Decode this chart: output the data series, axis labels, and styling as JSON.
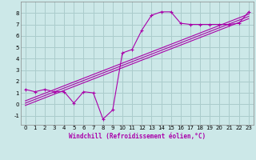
{
  "xlabel": "Windchill (Refroidissement éolien,°C)",
  "bg_color": "#cce8e8",
  "grid_color": "#aacccc",
  "line_color": "#aa00aa",
  "xlim": [
    -0.5,
    23.5
  ],
  "ylim": [
    -1.8,
    9.0
  ],
  "xticks": [
    0,
    1,
    2,
    3,
    4,
    5,
    6,
    7,
    8,
    9,
    10,
    11,
    12,
    13,
    14,
    15,
    16,
    17,
    18,
    19,
    20,
    21,
    22,
    23
  ],
  "yticks": [
    -1,
    0,
    1,
    2,
    3,
    4,
    5,
    6,
    7,
    8
  ],
  "scatter_x": [
    0,
    1,
    2,
    3,
    4,
    5,
    6,
    7,
    8,
    9,
    10,
    11,
    12,
    13,
    14,
    15,
    16,
    17,
    18,
    19,
    20,
    21,
    22,
    23
  ],
  "scatter_y": [
    1.3,
    1.1,
    1.3,
    1.1,
    1.1,
    0.1,
    1.1,
    1.0,
    -1.3,
    -0.5,
    4.5,
    4.8,
    6.5,
    7.8,
    8.1,
    8.1,
    7.1,
    7.0,
    7.0,
    7.0,
    7.0,
    7.0,
    7.1,
    8.1
  ],
  "line1_x": [
    0,
    23
  ],
  "line1_y": [
    0.3,
    7.9
  ],
  "line2_x": [
    0,
    23
  ],
  "line2_y": [
    0.1,
    7.7
  ],
  "line3_x": [
    0,
    23
  ],
  "line3_y": [
    -0.1,
    7.5
  ],
  "xlabel_fontsize": 5.5,
  "tick_fontsize": 5.0
}
